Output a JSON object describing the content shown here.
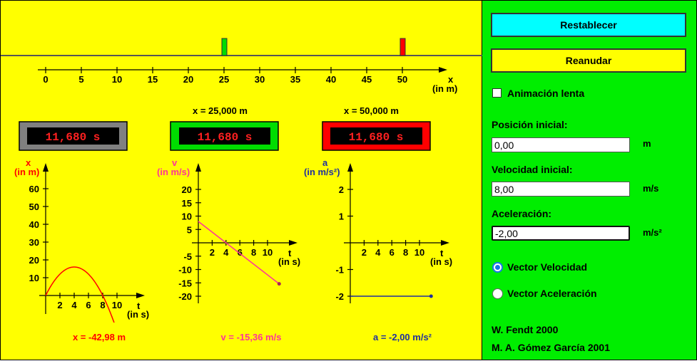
{
  "simulation": {
    "ruler": {
      "ticks": [
        "0",
        "5",
        "10",
        "15",
        "20",
        "25",
        "30",
        "35",
        "40",
        "45",
        "50"
      ],
      "axis_label": "x",
      "unit_label": "(in m)"
    },
    "gates": [
      {
        "position_label": "x = 25,000 m",
        "color": "#00dd00"
      },
      {
        "position_label": "x = 50,000 m",
        "color": "#ff0000"
      }
    ],
    "clocks": [
      {
        "value": "11,680 s",
        "frame_color": "#808080"
      },
      {
        "value": "11,680 s",
        "frame_color": "#00dd00"
      },
      {
        "value": "11,680 s",
        "frame_color": "#ff0000"
      }
    ],
    "clock_digit_color": "#ff2020",
    "graphs": {
      "x": {
        "axis_label": "x",
        "axis_unit": "(in m)",
        "y_ticks": [
          "60",
          "50",
          "40",
          "30",
          "20",
          "10"
        ],
        "t_ticks": [
          "2",
          "4",
          "6",
          "8",
          "10"
        ],
        "t_label": "t",
        "t_unit": "(in s)",
        "value_text": "x = -42,98 m",
        "color": "#ff0000"
      },
      "v": {
        "axis_label": "v",
        "axis_unit": "(in m/s)",
        "y_ticks": [
          "20",
          "15",
          "10",
          "5",
          "-5",
          "-10",
          "-15",
          "-20"
        ],
        "t_ticks": [
          "2",
          "4",
          "6",
          "8",
          "10"
        ],
        "t_label": "t",
        "t_unit": "(in s)",
        "value_text": "v = -15,36 m/s",
        "color": "#ff3399"
      },
      "a": {
        "axis_label": "a",
        "axis_unit": "(in m/s²)",
        "y_ticks": [
          "2",
          "1",
          "-1",
          "-2"
        ],
        "t_ticks": [
          "2",
          "4",
          "6",
          "8",
          "10"
        ],
        "t_label": "t",
        "t_unit": "(in s)",
        "value_text": "a = -2,00 m/s²",
        "color": "#1f2f9f"
      }
    },
    "motion": {
      "x0": 0,
      "v0": 8,
      "a": -2,
      "t_end": 11.68
    }
  },
  "panel": {
    "reset_label": "Restablecer",
    "resume_label": "Reanudar",
    "slow_motion_label": "Animación lenta",
    "initial_position": {
      "label": "Posición inicial:",
      "value": "0,00",
      "unit": "m"
    },
    "initial_velocity": {
      "label": "Velocidad inicial:",
      "value": "8,00",
      "unit": "m/s"
    },
    "acceleration": {
      "label": "Aceleración:",
      "value": "-2,00",
      "unit": "m/s²"
    },
    "radio_velocity_label": "Vector Velocidad",
    "radio_acceleration_label": "Vector Aceleración",
    "credit_1": "W. Fendt 2000",
    "credit_2": "M. A. Gómez García 2001"
  }
}
